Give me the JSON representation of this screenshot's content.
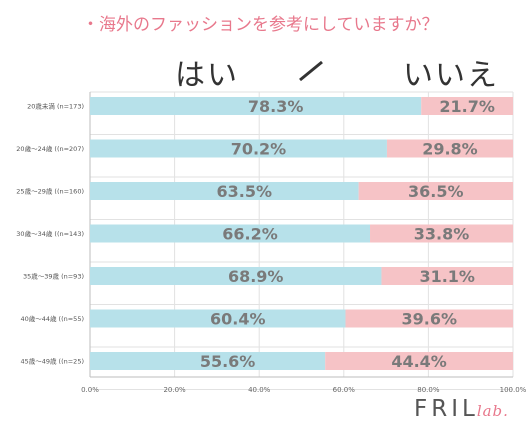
{
  "title": "・海外のファッションを参考にしていますか？",
  "header": {
    "yes_label": "はい",
    "no_label": "いいえ"
  },
  "logo": {
    "main": "FRIL",
    "sub": "lab."
  },
  "colors": {
    "yes": "#b7e1ea",
    "no": "#f6c3c6",
    "value_text": "#7a7a7a",
    "grid": "#e2e2e2",
    "title": "#e8788c"
  },
  "chart_data": {
    "type": "bar",
    "orientation": "horizontal",
    "stacked": true,
    "categories": [
      "20歳未満 (n=173)",
      "20歳～24歳 ((n=207)",
      "25歳～29歳 ((n=160)",
      "30歳～34歳 ((n=143)",
      "35歳～39歳 (n=93)",
      "40歳～44歳 ((n=55)",
      "45歳～49歳 ((n=25)"
    ],
    "series": [
      {
        "name": "はい",
        "values": [
          78.3,
          70.2,
          63.5,
          66.2,
          68.9,
          60.4,
          55.6
        ]
      },
      {
        "name": "いいえ",
        "values": [
          21.7,
          29.8,
          36.5,
          33.8,
          31.1,
          39.6,
          44.4
        ]
      }
    ],
    "value_labels": {
      "yes": [
        "78.3%",
        "70.2%",
        "63.5%",
        "66.2%",
        "68.9%",
        "60.4%",
        "55.6%"
      ],
      "no": [
        "21.7%",
        "29.8%",
        "36.5%",
        "33.8%",
        "31.1%",
        "39.6%",
        "44.4%"
      ]
    },
    "xlim": [
      0,
      100
    ],
    "xticks": [
      0,
      20,
      40,
      60,
      80,
      100
    ],
    "xtick_labels": [
      "0.0%",
      "20.0%",
      "40.0%",
      "60.0%",
      "80.0%",
      "100.0%"
    ],
    "grid": true,
    "legend": "top"
  }
}
